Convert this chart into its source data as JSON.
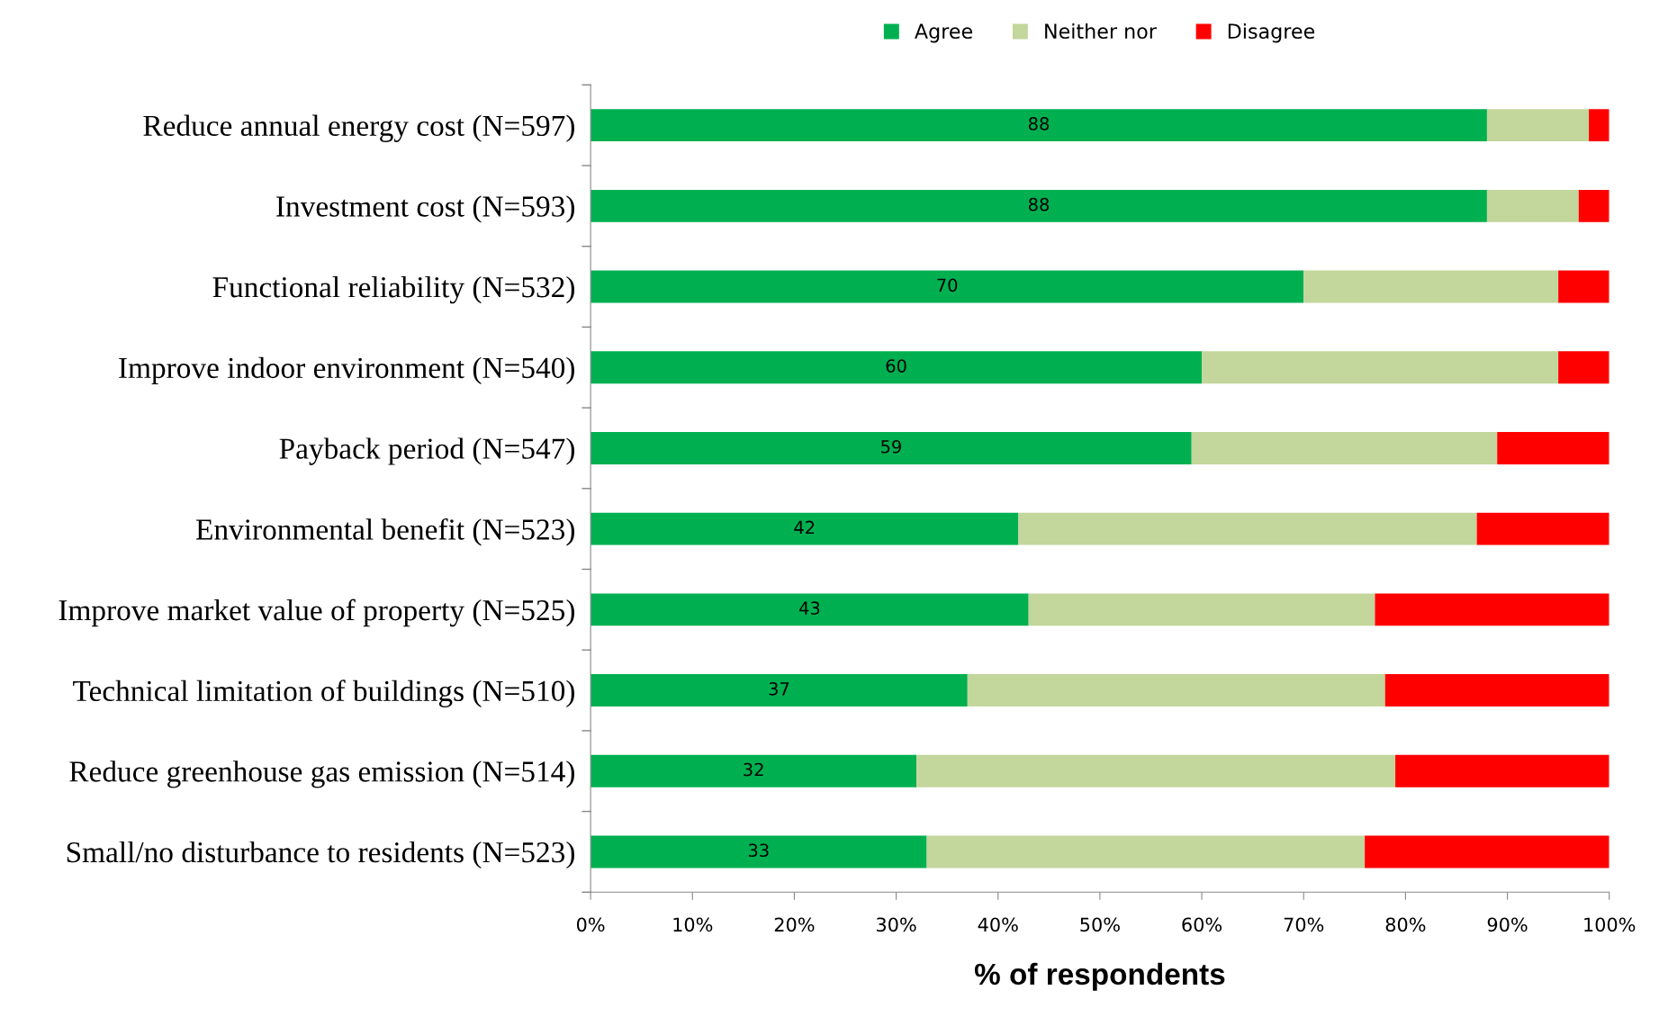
{
  "chart_data": {
    "type": "bar",
    "orientation": "horizontal",
    "stacked": true,
    "xlabel": "% of respondents",
    "categories": [
      "Reduce annual energy cost (N=597)",
      "Investment cost (N=593)",
      "Functional reliability (N=532)",
      "Improve indoor environment (N=540)",
      "Payback period (N=547)",
      "Environmental benefit (N=523)",
      "Improve market value of property (N=525)",
      "Technical limitation of buildings (N=510)",
      "Reduce greenhouse gas emission (N=514)",
      "Small/no disturbance to residents (N=523)"
    ],
    "series": [
      {
        "name": "Agree",
        "color": "#00b050",
        "values": [
          88,
          88,
          70,
          60,
          59,
          42,
          43,
          37,
          32,
          33
        ],
        "value_labels": [
          "88",
          "88",
          "70",
          "60",
          "59",
          "42",
          "43",
          "37",
          "32",
          "33"
        ]
      },
      {
        "name": "Neither nor",
        "color": "#c3d69b",
        "values": [
          10,
          9,
          25,
          35,
          30,
          45,
          34,
          41,
          47,
          43
        ]
      },
      {
        "name": "Disagree",
        "color": "#ff0000",
        "values": [
          2,
          3,
          5,
          5,
          11,
          13,
          23,
          22,
          21,
          24
        ]
      }
    ],
    "xlim": [
      0,
      100
    ],
    "xticks": [
      {
        "value": 0,
        "label": "0%"
      },
      {
        "value": 10,
        "label": "10%"
      },
      {
        "value": 20,
        "label": "20%"
      },
      {
        "value": 30,
        "label": "30%"
      },
      {
        "value": 40,
        "label": "40%"
      },
      {
        "value": 50,
        "label": "50%"
      },
      {
        "value": 60,
        "label": "60%"
      },
      {
        "value": 70,
        "label": "70%"
      },
      {
        "value": 80,
        "label": "80%"
      },
      {
        "value": 90,
        "label": "90%"
      },
      {
        "value": 100,
        "label": "100%"
      }
    ],
    "grid": false,
    "legend": "top"
  }
}
